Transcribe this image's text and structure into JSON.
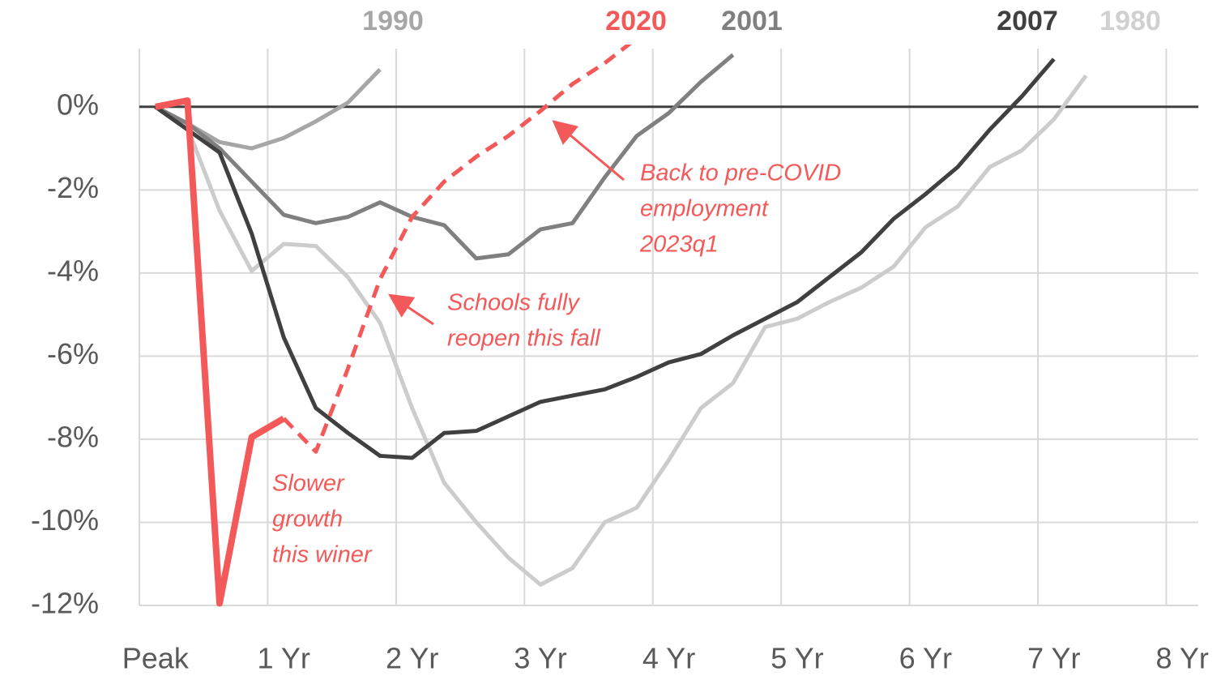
{
  "chart_data": {
    "type": "line",
    "categories": [
      "Peak",
      null,
      null,
      null,
      "1 Yr",
      null,
      null,
      null,
      "2 Yr",
      null,
      null,
      null,
      "3 Yr",
      null,
      null,
      null,
      "4 Yr",
      null,
      null,
      null,
      "5 Yr",
      null,
      null,
      null,
      "6 Yr",
      null,
      null,
      null,
      "7 Yr",
      null,
      null,
      null,
      "8 Yr"
    ],
    "ylim": [
      -12,
      1.4
    ],
    "yticks": [
      {
        "value": 0,
        "label": "0%"
      },
      {
        "value": -2,
        "label": "-2%"
      },
      {
        "value": -4,
        "label": "-4%"
      },
      {
        "value": -6,
        "label": "-6%"
      },
      {
        "value": -8,
        "label": "-8%"
      },
      {
        "value": -10,
        "label": "-10%"
      },
      {
        "value": -12,
        "label": "-12%"
      }
    ],
    "grid": true,
    "series": [
      {
        "name": "1990",
        "color": "#a6a6a6",
        "values": [
          0,
          -0.4,
          -0.85,
          -1.0,
          -0.75,
          -0.35,
          0.1,
          0.9,
          null,
          null,
          null,
          null,
          null,
          null,
          null,
          null,
          null,
          null,
          null,
          null,
          null,
          null,
          null,
          null,
          null,
          null,
          null,
          null,
          null,
          null,
          null,
          null,
          null
        ]
      },
      {
        "name": "2020",
        "color": "#f4595a",
        "values": [
          0,
          0.15,
          -11.95,
          -7.95,
          -7.5,
          null,
          null,
          null,
          null,
          null,
          null,
          null,
          null,
          null,
          null,
          null,
          null,
          null,
          null,
          null,
          null,
          null,
          null,
          null,
          null,
          null,
          null,
          null,
          null,
          null,
          null,
          null,
          null
        ],
        "projection": [
          null,
          null,
          null,
          null,
          -7.5,
          -8.3,
          -6.3,
          -4.15,
          -2.65,
          -1.8,
          -1.2,
          -0.7,
          -0.1,
          0.55,
          1.05,
          1.65,
          null,
          null,
          null,
          null,
          null,
          null,
          null,
          null,
          null,
          null,
          null,
          null,
          null,
          null,
          null,
          null,
          null
        ]
      },
      {
        "name": "2001",
        "color": "#808080",
        "values": [
          0,
          -0.4,
          -1.0,
          -1.8,
          -2.6,
          -2.8,
          -2.65,
          -2.3,
          -2.65,
          -2.85,
          -3.65,
          -3.55,
          -2.95,
          -2.8,
          -1.7,
          -0.7,
          -0.15,
          0.6,
          1.25,
          null,
          null,
          null,
          null,
          null,
          null,
          null,
          null,
          null,
          null,
          null,
          null,
          null,
          null
        ]
      },
      {
        "name": "2007",
        "color": "#404040",
        "values": [
          0,
          -0.55,
          -1.1,
          -3.05,
          -5.55,
          -7.25,
          -7.85,
          -8.4,
          -8.45,
          -7.85,
          -7.8,
          -7.45,
          -7.1,
          -6.95,
          -6.8,
          -6.5,
          -6.15,
          -5.95,
          -5.5,
          -5.1,
          -4.7,
          -4.1,
          -3.5,
          -2.7,
          -2.1,
          -1.45,
          -0.55,
          0.25,
          1.15,
          null,
          null,
          null,
          null
        ]
      },
      {
        "name": "1980",
        "color": "#cccccc",
        "values": [
          0,
          -0.5,
          -2.5,
          -3.95,
          -3.3,
          -3.35,
          -4.1,
          -5.2,
          -7.25,
          -9.05,
          -10.0,
          -10.85,
          -11.5,
          -11.1,
          -10.0,
          -9.65,
          -8.5,
          -7.25,
          -6.65,
          -5.3,
          -5.1,
          -4.7,
          -4.35,
          -3.85,
          -2.9,
          -2.4,
          -1.45,
          -1.05,
          -0.3,
          0.75,
          null,
          null,
          null
        ]
      }
    ],
    "annotations": [
      {
        "lines": [
          "Back to pre-COVID",
          "employment",
          "2023q1"
        ]
      },
      {
        "lines": [
          "Schools fully",
          "reopen this fall"
        ]
      },
      {
        "lines": [
          "Slower",
          "growth",
          "this winer"
        ]
      }
    ]
  }
}
